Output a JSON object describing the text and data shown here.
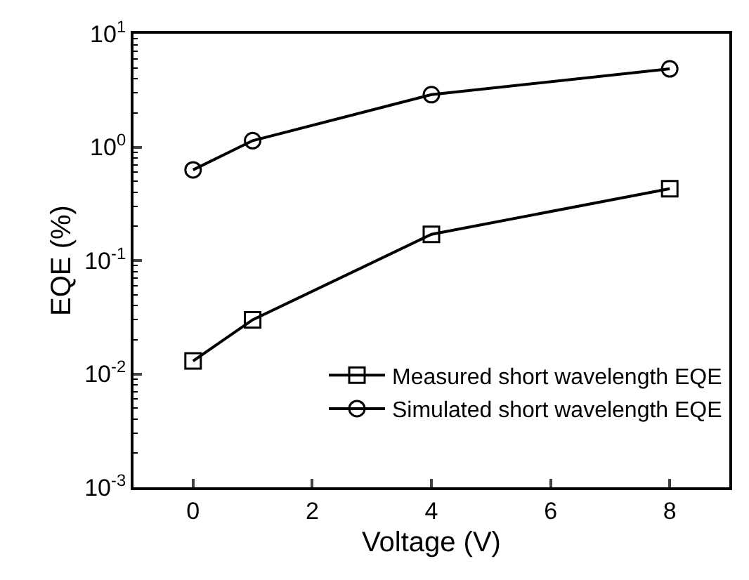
{
  "chart_data": {
    "type": "line",
    "xlabel": "Voltage (V)",
    "ylabel": "EQE (%)",
    "x": [
      0,
      1,
      4,
      8
    ],
    "series": [
      {
        "name": "Measured short wavelength EQE",
        "color": "#000000",
        "marker": "square",
        "values": [
          0.013,
          0.03,
          0.17,
          0.43
        ]
      },
      {
        "name": "Simulated short wavelength EQE",
        "color": "#000000",
        "marker": "circle",
        "values": [
          0.63,
          1.14,
          2.9,
          4.9
        ]
      }
    ],
    "log": "y",
    "xlim": [
      -1,
      9
    ],
    "xticks": [
      0,
      2,
      4,
      6,
      8
    ],
    "ylim": [
      0.001,
      10
    ],
    "yticks": [
      {
        "value": 0.001,
        "label": "10$^{-3}$"
      },
      {
        "value": 0.01,
        "label": "10$^{-2}$"
      },
      {
        "value": 0.1,
        "label": "10$^{-1}$"
      },
      {
        "value": 1,
        "label": "10$^{0}$"
      },
      {
        "value": 10,
        "label": "10$^{1}$"
      }
    ],
    "legend": "bottom right",
    "line_style": "solid"
  }
}
